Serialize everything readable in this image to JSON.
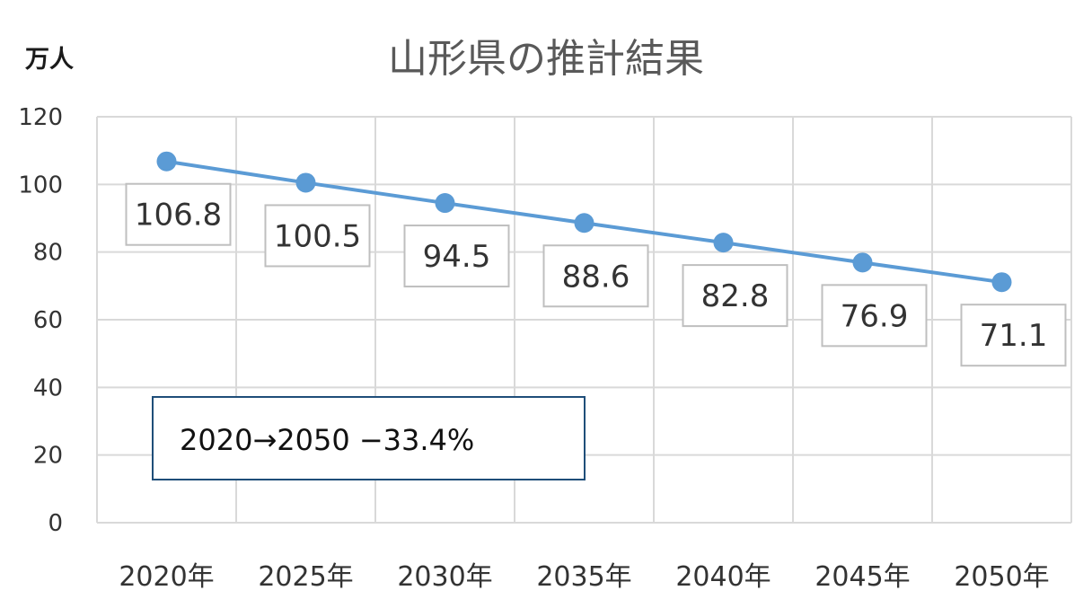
{
  "chart_data": {
    "type": "line",
    "title": "山形県の推計結果",
    "unit_label": "万人",
    "categories": [
      "2020年",
      "2025年",
      "2030年",
      "2035年",
      "2040年",
      "2045年",
      "2050年"
    ],
    "series": [
      {
        "values": [
          106.8,
          100.5,
          94.5,
          88.6,
          82.8,
          76.9,
          71.1
        ]
      }
    ],
    "data_labels": [
      "106.8",
      "100.5",
      "94.5",
      "88.6",
      "82.8",
      "76.9",
      "71.1"
    ],
    "ylim": [
      0,
      120
    ],
    "yticks": [
      0,
      20,
      40,
      60,
      80,
      100,
      120
    ],
    "grid": true,
    "annotation": "2020→2050 −33.4%",
    "colors": {
      "line": "#5b9bd5",
      "grid": "#d9d9d9",
      "annotation_border": "#1f4e79"
    }
  }
}
